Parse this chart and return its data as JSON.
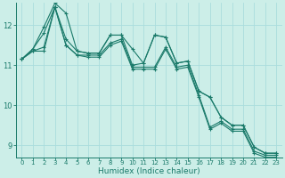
{
  "xlabel": "Humidex (Indice chaleur)",
  "bg_color": "#cceee8",
  "grid_color": "#aadddd",
  "line_color": "#1a7a6a",
  "xlim": [
    -0.5,
    23.5
  ],
  "ylim": [
    8.7,
    12.55
  ],
  "yticks": [
    9,
    10,
    11,
    12
  ],
  "xticks": [
    0,
    1,
    2,
    3,
    4,
    5,
    6,
    7,
    8,
    9,
    10,
    11,
    12,
    13,
    14,
    15,
    16,
    17,
    18,
    19,
    20,
    21,
    22,
    23
  ],
  "series": [
    [
      11.15,
      11.4,
      11.8,
      12.45,
      11.65,
      11.35,
      11.3,
      11.3,
      11.75,
      11.75,
      11.0,
      11.05,
      11.75,
      11.7,
      11.05,
      11.1,
      10.35,
      10.2,
      9.7,
      9.5,
      9.5,
      8.95,
      8.8,
      8.8
    ],
    [
      11.15,
      11.4,
      11.95,
      12.55,
      12.3,
      11.35,
      11.3,
      11.3,
      11.75,
      11.75,
      11.4,
      11.05,
      11.75,
      11.7,
      11.05,
      11.1,
      10.35,
      10.2,
      9.7,
      9.5,
      9.5,
      8.95,
      8.8,
      8.8
    ],
    [
      11.15,
      11.35,
      11.45,
      12.45,
      11.5,
      11.25,
      11.25,
      11.25,
      11.55,
      11.65,
      10.95,
      10.95,
      10.95,
      11.45,
      10.95,
      11.0,
      10.25,
      9.45,
      9.6,
      9.4,
      9.4,
      8.85,
      8.75,
      8.75
    ],
    [
      11.15,
      11.35,
      11.35,
      12.45,
      11.5,
      11.25,
      11.2,
      11.2,
      11.5,
      11.6,
      10.9,
      10.9,
      10.9,
      11.4,
      10.9,
      10.95,
      10.2,
      9.4,
      9.55,
      9.35,
      9.35,
      8.8,
      8.7,
      8.7
    ]
  ]
}
